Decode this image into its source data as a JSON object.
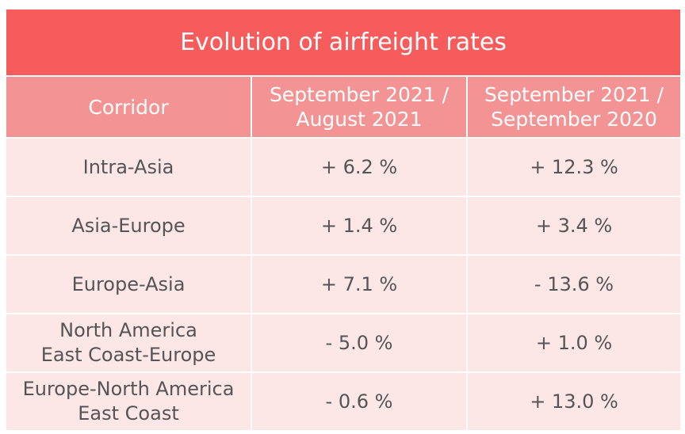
{
  "table": {
    "title": "Evolution of airfreight rates",
    "header": [
      "Corridor",
      "September 2021 /\nAugust 2021",
      "September 2021 /\nSeptember 2020"
    ],
    "rows": [
      [
        "Intra-Asia",
        "+ 6.2 %",
        "+ 12.3 %"
      ],
      [
        "Asia-Europe",
        "+ 1.4 %",
        "+ 3.4 %"
      ],
      [
        "Europe-Asia",
        "+ 7.1 %",
        "- 13.6 %"
      ],
      [
        "North America\nEast Coast-Europe",
        "- 5.0 %",
        "+ 1.0 %"
      ],
      [
        "Europe-North America\nEast Coast",
        "- 0.6 %",
        "+ 13.0 %"
      ]
    ]
  }
}
